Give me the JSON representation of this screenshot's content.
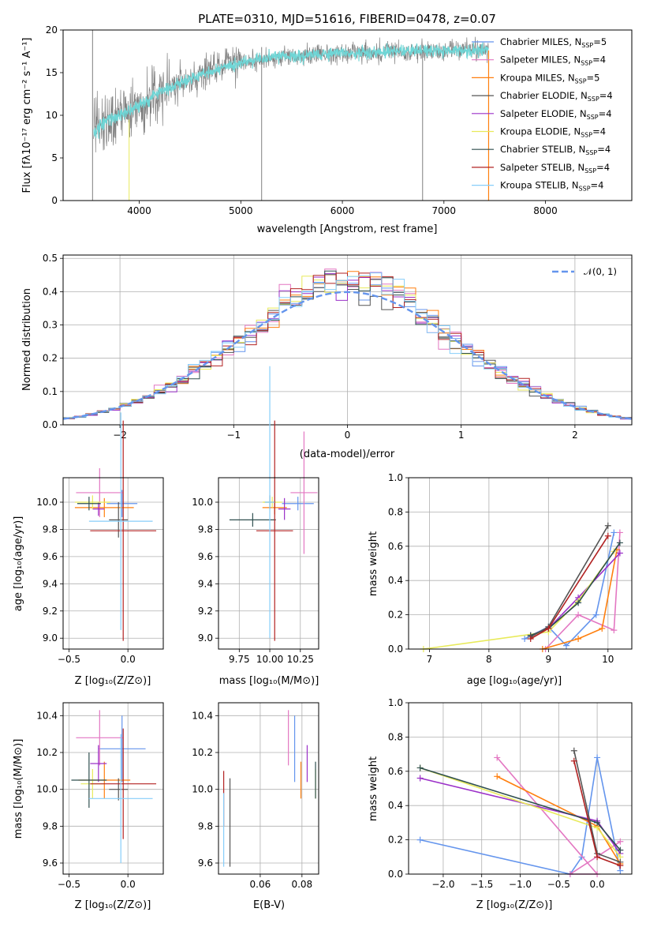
{
  "colors": {
    "c0": "#6495ed",
    "c1": "#e377c2",
    "c2": "#ff7f0e",
    "c3": "#555555",
    "c4": "#9b30c8",
    "c5": "#e8ea5a",
    "c6": "#2f4f4f",
    "c7": "#b22222",
    "c8": "#87cefa",
    "spectrum": "#808080",
    "model": "#6fd6d6"
  },
  "chart_data": [
    {
      "id": "spectrum",
      "type": "line",
      "title": "PLATE=0310, MJD=51616, FIBERID=0478, z=0.07",
      "xlabel": "wavelength [Angstrom, rest frame]",
      "ylabel": "Flux [fλ10⁻¹⁷ erg cm⁻² s⁻¹ A⁻¹]",
      "xlim": [
        3250,
        8850
      ],
      "ylim": [
        0,
        20
      ],
      "xticks": [
        "4000",
        "5000",
        "6000",
        "7000",
        "8000"
      ],
      "yticks": [
        "0",
        "5",
        "10",
        "15",
        "20"
      ],
      "grid": false,
      "legend_position": "lower-right",
      "legend": [
        {
          "label": "Chabrier MILES, N",
          "sub": "SSP",
          "tail": "=5",
          "color": "c0"
        },
        {
          "label": "Salpeter MILES, N",
          "sub": "SSP",
          "tail": "=4",
          "color": "c1"
        },
        {
          "label": "Kroupa MILES, N",
          "sub": "SSP",
          "tail": "=5",
          "color": "c2"
        },
        {
          "label": "Chabrier ELODIE, N",
          "sub": "SSP",
          "tail": "=4",
          "color": "c3"
        },
        {
          "label": "Salpeter ELODIE, N",
          "sub": "SSP",
          "tail": "=4",
          "color": "c4"
        },
        {
          "label": "Kroupa ELODIE, N",
          "sub": "SSP",
          "tail": "=4",
          "color": "c5"
        },
        {
          "label": "Chabrier STELIB, N",
          "sub": "SSP",
          "tail": "=4",
          "color": "c6"
        },
        {
          "label": "Salpeter STELIB, N",
          "sub": "SSP",
          "tail": "=4",
          "color": "c7"
        },
        {
          "label": "Kroupa STELIB, N",
          "sub": "SSP",
          "tail": "=4",
          "color": "c8"
        }
      ],
      "continuum": {
        "x": [
          3550,
          3700,
          3900,
          4000,
          4200,
          4500,
          4800,
          5000,
          5300,
          5600,
          6000,
          6500,
          7000,
          7500,
          7450
        ],
        "y": [
          8.0,
          9.5,
          10.5,
          11.0,
          12.8,
          14.2,
          15.6,
          16.2,
          16.8,
          17.0,
          17.3,
          17.5,
          17.6,
          17.6,
          17.6
        ]
      },
      "spikes": [
        {
          "x": 3540,
          "y0": 0,
          "y1": 20
        },
        {
          "x": 5205,
          "y0": 0,
          "y1": 18
        },
        {
          "x": 6790,
          "y0": 0,
          "y1": 17.7
        },
        {
          "x": 3900,
          "y0": 0,
          "y1": 9.5
        }
      ]
    },
    {
      "id": "residuals",
      "type": "histogram",
      "xlabel": "(data-model)/error",
      "ylabel": "Normed distribution",
      "xlim": [
        -2.5,
        2.5
      ],
      "ylim": [
        0,
        0.51
      ],
      "xticks": [
        "−2",
        "−1",
        "0",
        "1",
        "2"
      ],
      "yticks": [
        "0.0",
        "0.1",
        "0.2",
        "0.3",
        "0.4",
        "0.5"
      ],
      "grid": true,
      "legend": [
        {
          "label": "𝒩(0, 1)",
          "color": "c0",
          "style": "dashed"
        }
      ],
      "bin_width": 0.1
    },
    {
      "id": "age-vs-Z",
      "type": "errorbar",
      "xlabel": "Z [log₁₀(Z/Z⊙)]",
      "ylabel": "age  [log₁₀(age/yr)]",
      "xlim": [
        -0.55,
        0.3
      ],
      "ylim": [
        8.92,
        10.18
      ],
      "xticks": [
        "−0.5",
        "0.0"
      ],
      "xtickv": [
        -0.5,
        0.0
      ],
      "yticks": [
        "9.0",
        "9.2",
        "9.4",
        "9.6",
        "9.8",
        "10.0"
      ],
      "ytickv": [
        9.0,
        9.2,
        9.4,
        9.6,
        9.8,
        10.0
      ],
      "points": [
        {
          "x": -0.05,
          "y": 9.99,
          "xerr": 0.13,
          "yerr": 0.1,
          "color": "c0"
        },
        {
          "x": -0.24,
          "y": 10.07,
          "xerr": 0.2,
          "yerr": 0.18,
          "color": "c1"
        },
        {
          "x": -0.2,
          "y": 9.96,
          "xerr": 0.25,
          "yerr": 0.07,
          "color": "c2"
        },
        {
          "x": -0.08,
          "y": 9.87,
          "xerr": 0.08,
          "yerr": 0.13,
          "color": "c3"
        },
        {
          "x": -0.25,
          "y": 9.95,
          "xerr": 0.05,
          "yerr": 0.05,
          "color": "c4"
        },
        {
          "x": -0.3,
          "y": 10.0,
          "xerr": 0.15,
          "yerr": 0.05,
          "color": "c5"
        },
        {
          "x": -0.33,
          "y": 9.99,
          "xerr": 0.1,
          "yerr": 0.05,
          "color": "c6"
        },
        {
          "x": -0.04,
          "y": 9.79,
          "xerr": 0.28,
          "yerr": 0.81,
          "color": "c7"
        },
        {
          "x": -0.06,
          "y": 9.86,
          "xerr": 0.27,
          "yerr": 0.8,
          "color": "c8"
        }
      ]
    },
    {
      "id": "age-vs-mass",
      "type": "errorbar",
      "xlabel": "mass [log₁₀(M/M⊙)]",
      "ylabel": "",
      "xlim": [
        9.58,
        10.4
      ],
      "ylim": [
        8.92,
        10.18
      ],
      "xticks": [
        "9.75",
        "10.00",
        "10.25"
      ],
      "xtickv": [
        9.75,
        10.0,
        10.25
      ],
      "yticks": [
        "9.0",
        "9.2",
        "9.4",
        "9.6",
        "9.8",
        "10.0"
      ],
      "ytickv": [
        9.0,
        9.2,
        9.4,
        9.6,
        9.8,
        10.0
      ],
      "points": [
        {
          "x": 10.23,
          "y": 9.99,
          "xerr": 0.13,
          "yerr": 0.05,
          "color": "c0"
        },
        {
          "x": 10.28,
          "y": 10.07,
          "xerr": 0.11,
          "yerr": 0.45,
          "color": "c1"
        },
        {
          "x": 10.04,
          "y": 9.96,
          "xerr": 0.1,
          "yerr": 0.05,
          "color": "c2"
        },
        {
          "x": 10.0,
          "y": 10.0,
          "xerr": 0.05,
          "yerr": 0.05,
          "color": "c3"
        },
        {
          "x": 10.12,
          "y": 9.95,
          "xerr": 0.05,
          "yerr": 0.08,
          "color": "c4"
        },
        {
          "x": 10.02,
          "y": 10.0,
          "xerr": 0.08,
          "yerr": 0.04,
          "color": "c5"
        },
        {
          "x": 9.86,
          "y": 9.87,
          "xerr": 0.19,
          "yerr": 0.05,
          "color": "c6"
        },
        {
          "x": 10.04,
          "y": 9.79,
          "xerr": 0.15,
          "yerr": 0.81,
          "color": "c7"
        },
        {
          "x": 10.0,
          "y": 10.0,
          "xerr": 0.04,
          "yerr": 1.0,
          "color": "c8"
        }
      ]
    },
    {
      "id": "massweight-vs-age",
      "type": "line",
      "xlabel": "age  [log₁₀(age/yr)]",
      "ylabel": "mass weight",
      "xlim": [
        6.65,
        10.4
      ],
      "ylim": [
        0,
        1.0
      ],
      "xticks": [
        "7",
        "8",
        "9",
        "10"
      ],
      "xtickv": [
        7,
        8,
        9,
        10
      ],
      "yticks": [
        "0.0",
        "0.2",
        "0.4",
        "0.6",
        "0.8",
        "1.0"
      ],
      "ytickv": [
        0,
        0.2,
        0.4,
        0.6,
        0.8,
        1.0
      ],
      "series": [
        {
          "color": "c0",
          "x": [
            8.6,
            9.0,
            9.3,
            9.8,
            10.1
          ],
          "y": [
            0.06,
            0.13,
            0.02,
            0.2,
            0.68
          ]
        },
        {
          "color": "c1",
          "x": [
            8.95,
            9.5,
            10.1,
            10.2
          ],
          "y": [
            0.0,
            0.2,
            0.11,
            0.68
          ]
        },
        {
          "color": "c2",
          "x": [
            8.9,
            9.5,
            9.9,
            10.15
          ],
          "y": [
            0.0,
            0.06,
            0.12,
            0.58
          ]
        },
        {
          "color": "c4",
          "x": [
            8.7,
            9.0,
            9.5,
            10.2
          ],
          "y": [
            0.08,
            0.12,
            0.3,
            0.56
          ]
        },
        {
          "color": "c5",
          "x": [
            6.9,
            9.0,
            9.5,
            10.1
          ],
          "y": [
            0.0,
            0.1,
            0.28,
            0.57
          ]
        },
        {
          "color": "c6",
          "x": [
            8.7,
            9.0,
            9.5,
            10.2
          ],
          "y": [
            0.08,
            0.12,
            0.27,
            0.62
          ]
        },
        {
          "color": "c3",
          "x": [
            8.7,
            9.0,
            10.0
          ],
          "y": [
            0.07,
            0.13,
            0.72
          ]
        },
        {
          "color": "c7",
          "x": [
            8.7,
            9.0,
            10.0
          ],
          "y": [
            0.06,
            0.12,
            0.66
          ]
        }
      ]
    },
    {
      "id": "mass-vs-Z",
      "type": "errorbar",
      "xlabel": "Z [log₁₀(Z/Z⊙)]",
      "ylabel": "mass [log₁₀(M/M⊙)]",
      "xlim": [
        -0.55,
        0.3
      ],
      "ylim": [
        9.54,
        10.47
      ],
      "xticks": [
        "−0.5",
        "0.0"
      ],
      "xtickv": [
        -0.5,
        0.0
      ],
      "yticks": [
        "9.6",
        "9.8",
        "10.0",
        "10.2",
        "10.4"
      ],
      "ytickv": [
        9.6,
        9.8,
        10.0,
        10.2,
        10.4
      ],
      "points": [
        {
          "x": -0.05,
          "y": 10.22,
          "xerr": 0.2,
          "yerr": 0.18,
          "color": "c0"
        },
        {
          "x": -0.24,
          "y": 10.28,
          "xerr": 0.2,
          "yerr": 0.15,
          "color": "c1"
        },
        {
          "x": -0.2,
          "y": 10.05,
          "xerr": 0.22,
          "yerr": 0.1,
          "color": "c2"
        },
        {
          "x": -0.08,
          "y": 10.0,
          "xerr": 0.08,
          "yerr": 0.06,
          "color": "c3"
        },
        {
          "x": -0.25,
          "y": 10.14,
          "xerr": 0.07,
          "yerr": 0.1,
          "color": "c4"
        },
        {
          "x": -0.3,
          "y": 10.03,
          "xerr": 0.1,
          "yerr": 0.08,
          "color": "c5"
        },
        {
          "x": -0.33,
          "y": 10.05,
          "xerr": 0.15,
          "yerr": 0.15,
          "color": "c6"
        },
        {
          "x": -0.04,
          "y": 10.03,
          "xerr": 0.28,
          "yerr": 0.3,
          "color": "c7"
        },
        {
          "x": -0.06,
          "y": 9.95,
          "xerr": 0.27,
          "yerr": 0.35,
          "color": "c8"
        }
      ]
    },
    {
      "id": "mass-vs-EBV",
      "type": "errorbar",
      "xlabel": "E(B-V)",
      "ylabel": "",
      "xlim": [
        0.04,
        0.088
      ],
      "ylim": [
        9.54,
        10.47
      ],
      "xticks": [
        "0.06",
        "0.08"
      ],
      "xtickv": [
        0.06,
        0.08
      ],
      "yticks": [
        "9.6",
        "9.8",
        "10.0",
        "10.2",
        "10.4"
      ],
      "ytickv": [
        9.6,
        9.8,
        10.0,
        10.2,
        10.4
      ],
      "points": [
        {
          "x": 0.0765,
          "y": 10.22,
          "xerr": 0,
          "yerr": 0.18,
          "color": "c0"
        },
        {
          "x": 0.0735,
          "y": 10.28,
          "xerr": 0,
          "yerr": 0.15,
          "color": "c1"
        },
        {
          "x": 0.0795,
          "y": 10.05,
          "xerr": 0,
          "yerr": 0.1,
          "color": "c2"
        },
        {
          "x": 0.0455,
          "y": 9.82,
          "xerr": 0,
          "yerr": 0.24,
          "color": "c3"
        },
        {
          "x": 0.0825,
          "y": 10.14,
          "xerr": 0,
          "yerr": 0.1,
          "color": "c4"
        },
        {
          "x": 0.0865,
          "y": 10.03,
          "xerr": 0,
          "yerr": 0.08,
          "color": "c5"
        },
        {
          "x": 0.0865,
          "y": 10.05,
          "xerr": 0,
          "yerr": 0.1,
          "color": "c6"
        },
        {
          "x": 0.0425,
          "y": 9.95,
          "xerr": 0,
          "yerr": 0.15,
          "color": "c7"
        },
        {
          "x": 0.0425,
          "y": 9.78,
          "xerr": 0,
          "yerr": 0.2,
          "color": "c8"
        }
      ]
    },
    {
      "id": "massweight-vs-Z",
      "type": "line",
      "xlabel": "Z [log₁₀(Z/Z⊙)]",
      "ylabel": "mass weight",
      "xlim": [
        -2.45,
        0.45
      ],
      "ylim": [
        0,
        1.0
      ],
      "xticks": [
        "−2.0",
        "−1.5",
        "−1.0",
        "−0.5",
        "0.0"
      ],
      "xtickv": [
        -2.0,
        -1.5,
        -1.0,
        -0.5,
        0.0
      ],
      "yticks": [
        "0.0",
        "0.2",
        "0.4",
        "0.6",
        "0.8",
        "1.0"
      ],
      "ytickv": [
        0,
        0.2,
        0.4,
        0.6,
        0.8,
        1.0
      ],
      "series": [
        {
          "color": "c0",
          "x": [
            -2.3,
            -0.35,
            -0.2,
            0.0,
            0.3
          ],
          "y": [
            0.2,
            0.0,
            0.1,
            0.68,
            0.02
          ]
        },
        {
          "color": "c1",
          "x": [
            -1.3,
            0.0,
            -0.35,
            0.3
          ],
          "y": [
            0.68,
            0.0,
            0.0,
            0.19
          ]
        },
        {
          "color": "c2",
          "x": [
            -1.3,
            0.0,
            0.3
          ],
          "y": [
            0.57,
            0.28,
            0.06
          ]
        },
        {
          "color": "c4",
          "x": [
            -2.3,
            0.0,
            0.3
          ],
          "y": [
            0.56,
            0.31,
            0.12
          ]
        },
        {
          "color": "c5",
          "x": [
            -2.3,
            0.0,
            0.3
          ],
          "y": [
            0.62,
            0.27,
            0.1
          ]
        },
        {
          "color": "c6",
          "x": [
            -2.3,
            0.0,
            0.3
          ],
          "y": [
            0.62,
            0.3,
            0.14
          ]
        },
        {
          "color": "c3",
          "x": [
            -0.3,
            0.0,
            0.3
          ],
          "y": [
            0.72,
            0.12,
            0.07
          ]
        },
        {
          "color": "c7",
          "x": [
            -0.3,
            0.0,
            0.3
          ],
          "y": [
            0.66,
            0.1,
            0.05
          ]
        }
      ]
    }
  ]
}
